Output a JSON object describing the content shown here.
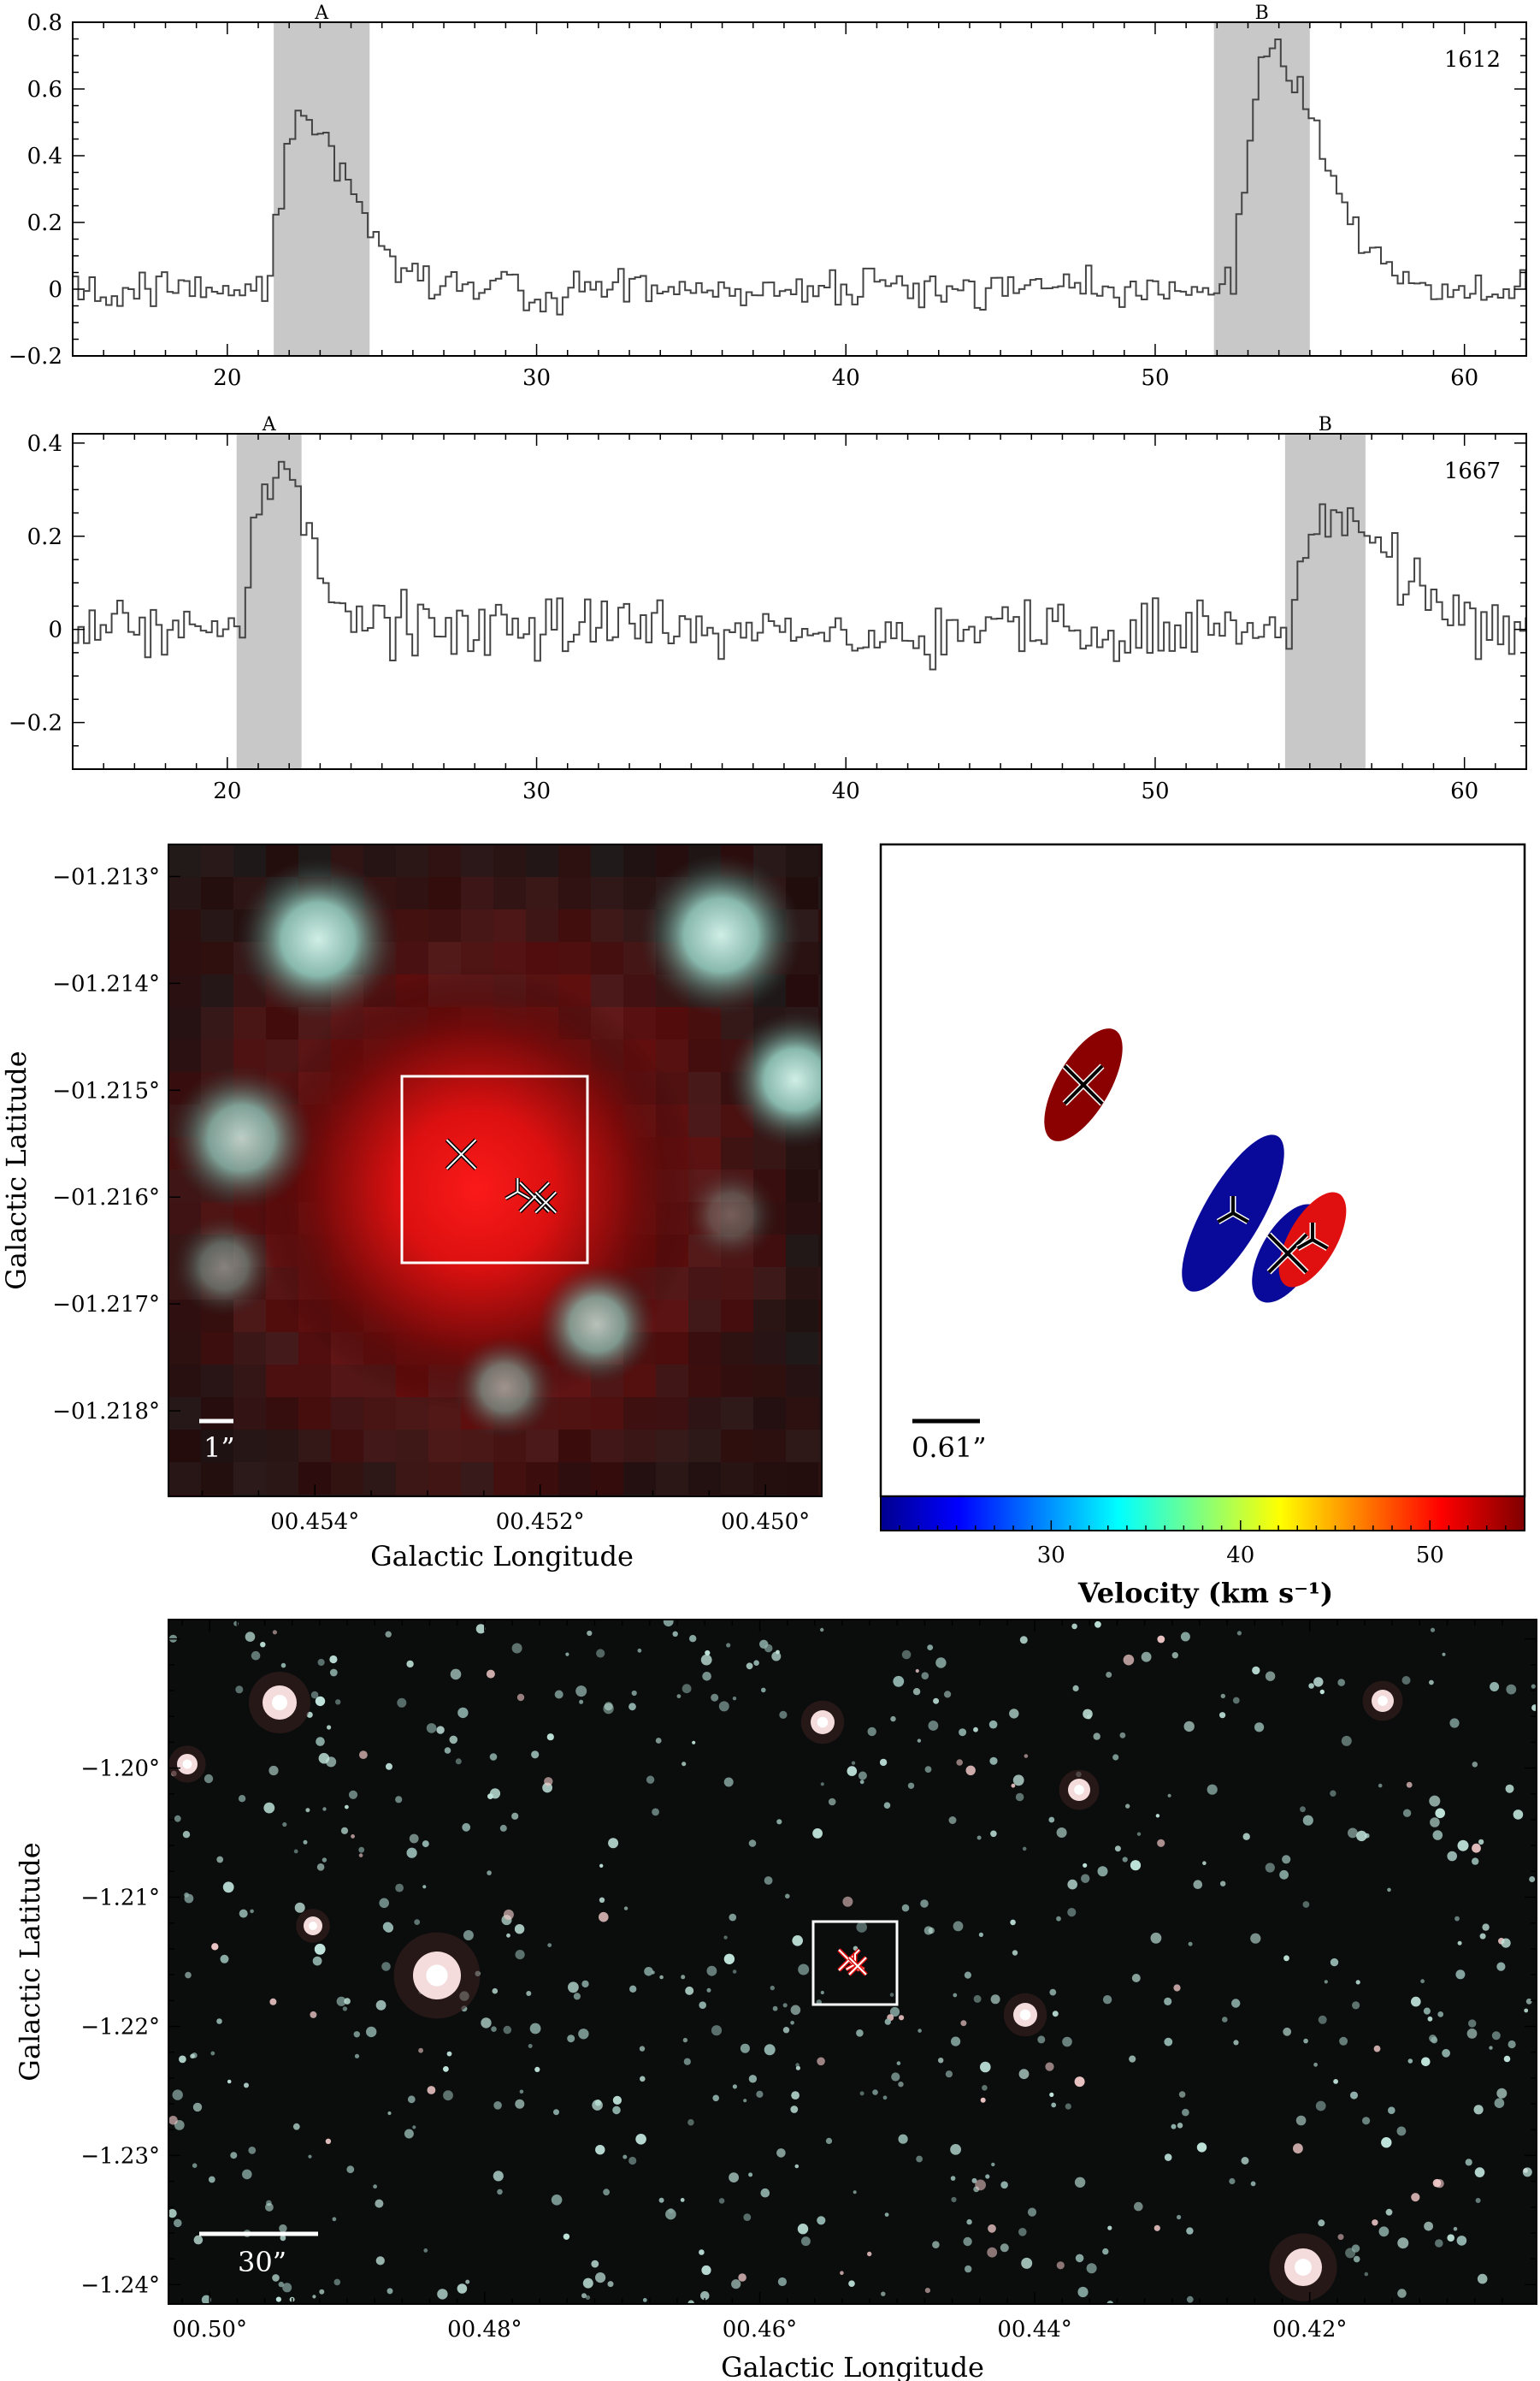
{
  "chart_data": [
    {
      "type": "line",
      "panel": "spectrum-1612",
      "label": "1612",
      "xlim": [
        15,
        62
      ],
      "ylim": [
        -0.2,
        0.8
      ],
      "x_ticks": [
        "20",
        "30",
        "40",
        "50",
        "60"
      ],
      "y_ticks": [
        "−0.2",
        "0",
        "0.2",
        "0.4",
        "0.6",
        "0.8"
      ],
      "x_tick_values": [
        20,
        30,
        40,
        50,
        60
      ],
      "y_tick_values": [
        -0.2,
        0,
        0.2,
        0.4,
        0.6,
        0.8
      ],
      "shaded_regions": [
        {
          "name": "A",
          "x": [
            21.5,
            24.6
          ]
        },
        {
          "name": "B",
          "x": [
            51.9,
            55.0
          ]
        }
      ],
      "features": [
        {
          "center": 22.3,
          "peak": 0.52,
          "width": 1.2
        },
        {
          "center": 53.6,
          "peak": 0.7,
          "width": 1.3
        }
      ],
      "noise": 0.055,
      "channel_width": 0.18
    },
    {
      "type": "line",
      "panel": "spectrum-1667",
      "label": "1667",
      "xlim": [
        15,
        62
      ],
      "ylim": [
        -0.3,
        0.42
      ],
      "x_ticks": [
        "20",
        "30",
        "40",
        "50",
        "60"
      ],
      "y_ticks": [
        "−0.2",
        "0",
        "0.2",
        "0.4"
      ],
      "x_tick_values": [
        20,
        30,
        40,
        50,
        60
      ],
      "y_tick_values": [
        -0.2,
        0,
        0.2,
        0.4
      ],
      "shaded_regions": [
        {
          "name": "A",
          "x": [
            20.3,
            22.4
          ]
        },
        {
          "name": "B",
          "x": [
            54.2,
            56.8
          ]
        }
      ],
      "features": [
        {
          "center": 21.2,
          "peak": 0.33,
          "width": 1.0
        },
        {
          "center": 55.5,
          "peak": 0.25,
          "width": 1.5
        }
      ],
      "noise": 0.065,
      "channel_width": 0.18
    },
    {
      "type": "scatter",
      "panel": "zoom-image",
      "xlabel": "Galactic Longitude",
      "ylabel": "Galactic Latitude",
      "xlim": [
        0.4553,
        0.4495
      ],
      "ylim": [
        -1.2188,
        -1.2127
      ],
      "x_ticks": [
        "00.454°",
        "00.452°",
        "00.450°"
      ],
      "x_tick_values": [
        0.454,
        0.452,
        0.45
      ],
      "y_ticks": [
        "−01.213°",
        "−01.214°",
        "−01.215°",
        "−01.216°",
        "−01.217°",
        "−01.218°"
      ],
      "y_tick_values": [
        -1.213,
        -1.214,
        -1.215,
        -1.216,
        -1.217,
        -1.218
      ],
      "scalebar_label": "1”",
      "markers": [
        {
          "l": 0.4527,
          "b": -1.2156,
          "shape": "x"
        },
        {
          "l": 0.4522,
          "b": -1.21595,
          "shape": "y"
        },
        {
          "l": 0.45205,
          "b": -1.216,
          "shape": "x"
        },
        {
          "l": 0.45195,
          "b": -1.21605,
          "shape": "cross"
        }
      ]
    },
    {
      "type": "scatter",
      "panel": "maser-positions",
      "colorbar_label": "Velocity (km s⁻¹)",
      "colorbar_ticks": [
        "30",
        "40",
        "50"
      ],
      "colorbar_tick_values": [
        30,
        40,
        50
      ],
      "colorbar_range": [
        21,
        55
      ],
      "scalebar_label": "0.61”",
      "ellipses": [
        {
          "velocity": 55,
          "color": "#8b0000",
          "marker": "x"
        },
        {
          "velocity": 21,
          "color": "#0a0a9a",
          "marker": "y"
        },
        {
          "velocity": 22,
          "color": "#0a0a9a",
          "marker": "x"
        },
        {
          "velocity": 54,
          "color": "#e01010",
          "marker": "y"
        }
      ]
    },
    {
      "type": "scatter",
      "panel": "wide-field",
      "xlabel": "Galactic Longitude",
      "ylabel": "Galactic Latitude",
      "xlim": [
        0.503,
        0.4035
      ],
      "ylim": [
        -1.2415,
        -1.1885
      ],
      "x_ticks": [
        "00.50°",
        "00.48°",
        "00.46°",
        "00.44°",
        "00.42°"
      ],
      "x_tick_values": [
        0.5,
        0.48,
        0.46,
        0.44,
        0.42
      ],
      "y_ticks": [
        "−1.20°",
        "−1.21°",
        "−1.22°",
        "−1.23°",
        "−1.24°"
      ],
      "y_tick_values": [
        -1.2,
        -1.21,
        -1.22,
        -1.23,
        -1.24
      ],
      "scalebar_label": "30”",
      "target": {
        "l": 0.4522,
        "b": -1.2159
      }
    }
  ]
}
